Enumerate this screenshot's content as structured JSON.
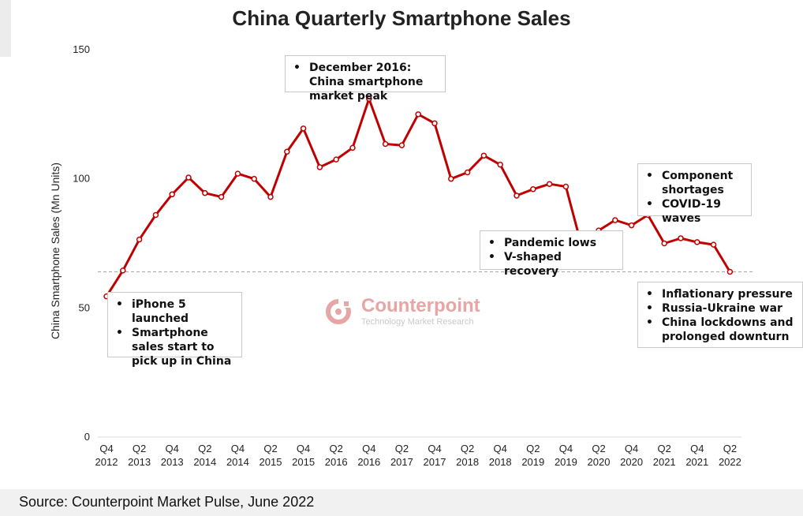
{
  "chart_data": {
    "type": "line",
    "title": "China Quarterly Smartphone Sales",
    "ylabel": "China Smartphone Sales (Mn Units)",
    "xlabel": "",
    "ylim": [
      0,
      150
    ],
    "yticks": [
      0,
      50,
      100,
      150
    ],
    "grid": false,
    "line_color": "#c00000",
    "reference_line": 64,
    "x_tick_labels": [
      {
        "q": "Q4",
        "y": "2012"
      },
      {
        "q": "Q2",
        "y": "2013"
      },
      {
        "q": "Q4",
        "y": "2013"
      },
      {
        "q": "Q2",
        "y": "2014"
      },
      {
        "q": "Q4",
        "y": "2014"
      },
      {
        "q": "Q2",
        "y": "2015"
      },
      {
        "q": "Q4",
        "y": "2015"
      },
      {
        "q": "Q2",
        "y": "2016"
      },
      {
        "q": "Q4",
        "y": "2016"
      },
      {
        "q": "Q2",
        "y": "2017"
      },
      {
        "q": "Q4",
        "y": "2017"
      },
      {
        "q": "Q2",
        "y": "2018"
      },
      {
        "q": "Q4",
        "y": "2018"
      },
      {
        "q": "Q2",
        "y": "2019"
      },
      {
        "q": "Q4",
        "y": "2019"
      },
      {
        "q": "Q2",
        "y": "2020"
      },
      {
        "q": "Q4",
        "y": "2020"
      },
      {
        "q": "Q2",
        "y": "2021"
      },
      {
        "q": "Q4",
        "y": "2021"
      },
      {
        "q": "Q2",
        "y": "2022"
      }
    ],
    "x": [
      "Q4 2012",
      "Q1 2013",
      "Q2 2013",
      "Q3 2013",
      "Q4 2013",
      "Q1 2014",
      "Q2 2014",
      "Q3 2014",
      "Q4 2014",
      "Q1 2015",
      "Q2 2015",
      "Q3 2015",
      "Q4 2015",
      "Q1 2016",
      "Q2 2016",
      "Q3 2016",
      "Q4 2016",
      "Q1 2017",
      "Q2 2017",
      "Q3 2017",
      "Q4 2017",
      "Q1 2018",
      "Q2 2018",
      "Q3 2018",
      "Q4 2018",
      "Q1 2019",
      "Q2 2019",
      "Q3 2019",
      "Q4 2019",
      "Q1 2020",
      "Q2 2020",
      "Q3 2020",
      "Q4 2020",
      "Q1 2021",
      "Q2 2021",
      "Q3 2021",
      "Q4 2021",
      "Q1 2022",
      "Q2 2022"
    ],
    "series": [
      {
        "values": [
          54.5,
          64.5,
          76.5,
          86,
          94,
          100.5,
          94.5,
          93,
          102,
          100,
          93,
          110.5,
          119.5,
          104.5,
          107.5,
          112,
          131,
          113.5,
          113,
          125,
          121.5,
          100,
          102.5,
          109,
          105.5,
          93.5,
          96,
          98,
          97,
          73,
          80,
          84,
          82,
          86,
          75,
          77,
          75.5,
          74.5,
          64
        ]
      }
    ]
  },
  "annotations": [
    {
      "id": "iphone",
      "items": [
        "iPhone 5 launched",
        "Smartphone sales start to pick up in China"
      ]
    },
    {
      "id": "peak",
      "items": [
        "December 2016: China smartphone market peak"
      ]
    },
    {
      "id": "pandemic",
      "items": [
        "Pandemic lows",
        "V-shaped recovery"
      ]
    },
    {
      "id": "component",
      "items": [
        "Component shortages",
        "COVID-19 waves"
      ]
    },
    {
      "id": "inflation",
      "items": [
        "Inflationary pressure",
        "Russia-Ukraine war",
        "China lockdowns and prolonged downturn"
      ]
    }
  ],
  "watermark": {
    "name": "Counterpoint",
    "tagline": "Technology Market Research",
    "icon": "counterpoint-logo-icon",
    "color": "#e7a5a5"
  },
  "source": "Source: Counterpoint Market Pulse, June 2022"
}
